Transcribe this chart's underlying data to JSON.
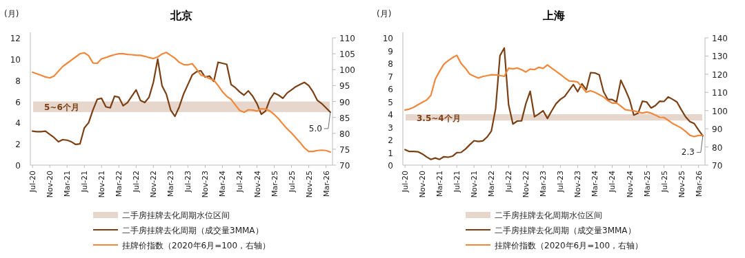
{
  "chart_data": [
    {
      "type": "line",
      "title": "北京",
      "ylabel": "(月)",
      "categories": [
        "Jul-20",
        null,
        null,
        null,
        "Nov-20",
        null,
        null,
        null,
        "Mar-21",
        null,
        null,
        null,
        "Jul-21",
        null,
        null,
        null,
        "Nov-21",
        null,
        null,
        null,
        "Mar-22",
        null,
        null,
        null,
        "Jul-22",
        null,
        null,
        null,
        "Nov-22",
        null,
        null,
        null,
        "Mar-23",
        null,
        null,
        null,
        "Jul-23",
        null,
        null,
        null,
        "Nov-23",
        null,
        null,
        null,
        "Mar-24",
        null,
        null,
        null,
        "Jul-24",
        null,
        null,
        null,
        "Nov-24",
        null,
        null,
        null,
        "Mar-25",
        null,
        null,
        null,
        "Jul-25",
        null,
        null,
        null,
        "Nov-25",
        null,
        null,
        null,
        "Mar-26",
        null
      ],
      "series": [
        {
          "name": "二手房挂牌去化周期（成交量3MMA）",
          "color": "#7b3f14",
          "values": [
            3.2,
            3.15,
            3.15,
            3.2,
            2.9,
            2.6,
            2.2,
            2.4,
            2.35,
            2.2,
            1.95,
            2.0,
            3.5,
            4.0,
            5.2,
            6.2,
            6.3,
            5.5,
            5.4,
            6.5,
            6.4,
            5.6,
            5.9,
            6.5,
            7.1,
            6.1,
            5.9,
            6.4,
            7.8,
            10.0,
            7.5,
            6.7,
            5.2,
            4.6,
            5.5,
            6.7,
            7.6,
            8.5,
            8.8,
            8.9,
            8.3,
            8.4,
            7.9,
            9.7,
            9.6,
            9.5,
            7.6,
            7.3,
            6.9,
            6.6,
            7.0,
            6.5,
            5.8,
            4.8,
            5.1,
            6.2,
            6.8,
            6.6,
            6.3,
            6.8,
            7.1,
            7.4,
            7.6,
            7.8,
            7.5,
            6.9,
            6.1,
            5.8,
            5.4,
            5.0
          ]
        },
        {
          "name": "挂牌价指数（2020年6月=100，右轴）",
          "color": "#f0873a",
          "axis": "y2",
          "values": [
            99.2,
            98.7,
            98.2,
            97.7,
            97.4,
            98.0,
            99.5,
            101.0,
            102.0,
            103.0,
            104.0,
            105.0,
            105.3,
            104.4,
            102.1,
            102.0,
            103.4,
            103.8,
            104.3,
            104.7,
            105.0,
            105.0,
            104.8,
            104.7,
            104.5,
            104.5,
            104.2,
            103.8,
            103.5,
            104.0,
            104.9,
            105.4,
            104.5,
            103.6,
            102.3,
            101.6,
            101.5,
            101.9,
            100.2,
            98.3,
            97.9,
            97.2,
            96.7,
            95.0,
            93.1,
            91.6,
            90.7,
            88.9,
            87.2,
            86.6,
            87.4,
            87.3,
            87.0,
            87.7,
            87.6,
            87.0,
            85.9,
            84.6,
            82.9,
            81.4,
            80.1,
            78.6,
            77.1,
            75.4,
            74.3,
            74.3,
            74.6,
            74.7,
            74.6,
            74.1
          ]
        }
      ],
      "ylim": [
        0,
        12
      ],
      "yticks": [
        0,
        2,
        4,
        6,
        8,
        10,
        12
      ],
      "y2lim": [
        70,
        110
      ],
      "y2ticks": [
        70,
        75,
        80,
        85,
        90,
        95,
        100,
        105,
        110
      ],
      "bands": [
        {
          "axis": "y",
          "from": 5,
          "to": 6,
          "label": "二手房挂牌去化周期水位区间",
          "color": "#e6d6cb"
        }
      ],
      "annotations": [
        "5~6个月",
        {
          "text": "5.0",
          "y": 5.0
        }
      ],
      "legend": "bottom"
    },
    {
      "type": "line",
      "title": "上海",
      "ylabel": "(月)",
      "categories": [
        "Jul-20",
        null,
        null,
        null,
        "Nov-20",
        null,
        null,
        null,
        "Mar-21",
        null,
        null,
        null,
        "Jul-21",
        null,
        null,
        null,
        "Nov-21",
        null,
        null,
        null,
        "Mar-22",
        null,
        null,
        null,
        "Jul-22",
        null,
        null,
        null,
        "Nov-22",
        null,
        null,
        null,
        "Mar-23",
        null,
        null,
        null,
        "Jul-23",
        null,
        null,
        null,
        "Nov-23",
        null,
        null,
        null,
        "Mar-24",
        null,
        null,
        null,
        "Jul-24",
        null,
        null,
        null,
        "Nov-24",
        null,
        null,
        null,
        "Mar-25",
        null,
        null,
        null,
        "Jul-25",
        null,
        null,
        null,
        "Nov-25",
        null,
        null,
        null,
        "Mar-26",
        null
      ],
      "series": [
        {
          "name": "二手房挂牌去化周期（成交量3MMA）",
          "color": "#7b3f14",
          "values": [
            1.22,
            1.07,
            1.07,
            1.05,
            0.88,
            0.64,
            0.45,
            0.56,
            0.45,
            0.66,
            0.62,
            0.7,
            0.98,
            1.0,
            1.26,
            1.6,
            1.92,
            1.86,
            1.9,
            2.2,
            2.67,
            4.45,
            8.6,
            9.2,
            4.74,
            3.23,
            3.46,
            3.48,
            4.83,
            5.8,
            3.8,
            4.02,
            4.27,
            3.67,
            4.27,
            4.83,
            5.17,
            5.4,
            5.87,
            6.33,
            5.77,
            6.39,
            5.92,
            7.27,
            7.24,
            7.09,
            5.77,
            5.15,
            5.15,
            4.96,
            6.67,
            5.96,
            5.17,
            3.93,
            4.08,
            5.02,
            4.96,
            4.49,
            4.68,
            5.02,
            5.0,
            5.36,
            5.17,
            4.96,
            4.36,
            3.8,
            3.42,
            3.27,
            2.76,
            2.3
          ]
        },
        {
          "name": "挂牌价指数（2020年6月=100，右轴）",
          "color": "#f0873a",
          "axis": "y2",
          "values": [
            100.3,
            100.8,
            101.8,
            103.2,
            104.5,
            105.8,
            108.4,
            117.2,
            121.6,
            125.5,
            127.5,
            129.1,
            130.4,
            125.9,
            123.3,
            120.0,
            118.9,
            117.9,
            118.7,
            119.2,
            119.7,
            119.6,
            119.3,
            118.8,
            123.3,
            122.9,
            123.4,
            122.5,
            121.2,
            122.8,
            122.5,
            123.8,
            123.2,
            125.1,
            123.3,
            121.6,
            119.9,
            118.0,
            116.3,
            116.1,
            115.7,
            113.0,
            110.1,
            110.9,
            110.0,
            108.8,
            107.5,
            105.5,
            104.1,
            104.2,
            102.5,
            100.5,
            100.1,
            99.9,
            99.2,
            98.6,
            99.2,
            98.6,
            97.5,
            96.3,
            96.2,
            94.6,
            92.9,
            91.7,
            90.4,
            88.6,
            86.4,
            85.7,
            86.3,
            86.3
          ]
        }
      ],
      "ylim": [
        0,
        10
      ],
      "yticks": [
        0,
        1,
        2,
        3,
        4,
        5,
        6,
        7,
        8,
        9,
        10
      ],
      "y2lim": [
        70,
        140
      ],
      "y2ticks": [
        70,
        80,
        90,
        100,
        110,
        120,
        130,
        140
      ],
      "bands": [
        {
          "axis": "y",
          "from": 3.5,
          "to": 4,
          "label": "二手房挂牌去化周期水位区间",
          "color": "#e6d6cb"
        }
      ],
      "annotations": [
        "3.5~4个月",
        {
          "text": "2.3",
          "y": 2.3
        }
      ],
      "legend": "bottom"
    }
  ]
}
